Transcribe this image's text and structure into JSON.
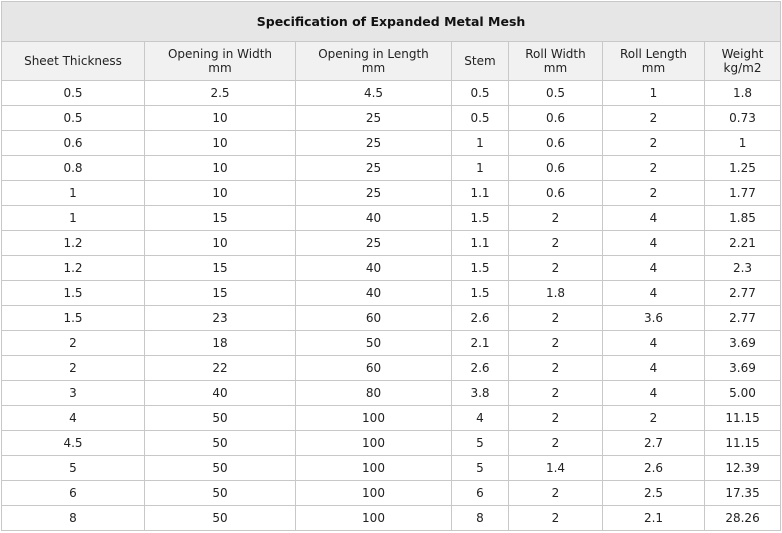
{
  "title": "Specification of Expanded Metal Mesh",
  "columns": [
    {
      "label": "Sheet Thickness",
      "unit": ""
    },
    {
      "label": "Opening in Width",
      "unit": "mm"
    },
    {
      "label": "Opening in Length",
      "unit": "mm"
    },
    {
      "label": "Stem",
      "unit": ""
    },
    {
      "label": "Roll Width",
      "unit": "mm"
    },
    {
      "label": "Roll Length",
      "unit": "mm"
    },
    {
      "label": "Weight",
      "unit": "kg/m2"
    }
  ],
  "rows": [
    [
      "0.5",
      "2.5",
      "4.5",
      "0.5",
      "0.5",
      "1",
      "1.8"
    ],
    [
      "0.5",
      "10",
      "25",
      "0.5",
      "0.6",
      "2",
      "0.73"
    ],
    [
      "0.6",
      "10",
      "25",
      "1",
      "0.6",
      "2",
      "1"
    ],
    [
      "0.8",
      "10",
      "25",
      "1",
      "0.6",
      "2",
      "1.25"
    ],
    [
      "1",
      "10",
      "25",
      "1.1",
      "0.6",
      "2",
      "1.77"
    ],
    [
      "1",
      "15",
      "40",
      "1.5",
      "2",
      "4",
      "1.85"
    ],
    [
      "1.2",
      "10",
      "25",
      "1.1",
      "2",
      "4",
      "2.21"
    ],
    [
      "1.2",
      "15",
      "40",
      "1.5",
      "2",
      "4",
      "2.3"
    ],
    [
      "1.5",
      "15",
      "40",
      "1.5",
      "1.8",
      "4",
      "2.77"
    ],
    [
      "1.5",
      "23",
      "60",
      "2.6",
      "2",
      "3.6",
      "2.77"
    ],
    [
      "2",
      "18",
      "50",
      "2.1",
      "2",
      "4",
      "3.69"
    ],
    [
      "2",
      "22",
      "60",
      "2.6",
      "2",
      "4",
      "3.69"
    ],
    [
      "3",
      "40",
      "80",
      "3.8",
      "2",
      "4",
      "5.00"
    ],
    [
      "4",
      "50",
      "100",
      "4",
      "2",
      "2",
      "11.15"
    ],
    [
      "4.5",
      "50",
      "100",
      "5",
      "2",
      "2.7",
      "11.15"
    ],
    [
      "5",
      "50",
      "100",
      "5",
      "1.4",
      "2.6",
      "12.39"
    ],
    [
      "6",
      "50",
      "100",
      "6",
      "2",
      "2.5",
      "17.35"
    ],
    [
      "8",
      "50",
      "100",
      "8",
      "2",
      "2.1",
      "28.26"
    ]
  ]
}
